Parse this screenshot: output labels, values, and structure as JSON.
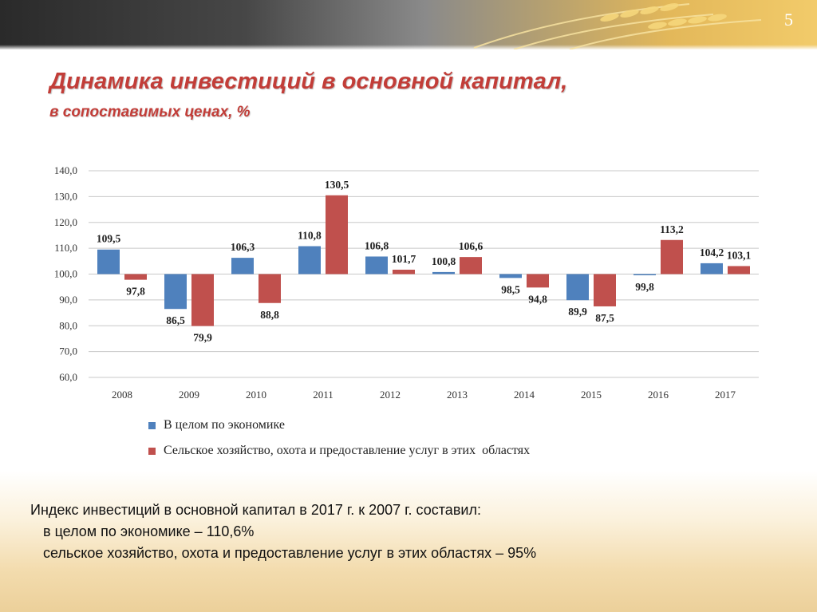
{
  "slide": {
    "number": "5",
    "title": "Динамика инвестиций в основной капитал,",
    "subtitle": "в сопоставимых ценах, %"
  },
  "colors": {
    "series1": "#4f81bd",
    "series2": "#c0504d",
    "title": "#c23d38"
  },
  "chart_data": {
    "type": "bar",
    "categories": [
      "2008",
      "2009",
      "2010",
      "2011",
      "2012",
      "2013",
      "2014",
      "2015",
      "2016",
      "2017"
    ],
    "y_ticks": [
      "60,0",
      "70,0",
      "80,0",
      "90,0",
      "100,0",
      "110,0",
      "120,0",
      "130,0",
      "140,0"
    ],
    "ylim": [
      60,
      140
    ],
    "baseline": 100,
    "grid": true,
    "legend_position": "bottom",
    "series": [
      {
        "name": "В целом по экономике",
        "values": [
          109.5,
          86.5,
          106.3,
          110.8,
          106.8,
          100.8,
          98.5,
          89.9,
          99.8,
          104.2
        ],
        "labels": [
          "109,5",
          "86,5",
          "106,3",
          "110,8",
          "106,8",
          "100,8",
          "98,5",
          "89,9",
          "99,8",
          "104,2"
        ]
      },
      {
        "name": "Сельское хозяйство, охота и предоставление услуг в этих  областях",
        "values": [
          97.8,
          79.9,
          88.8,
          130.5,
          101.7,
          106.6,
          94.8,
          87.5,
          113.2,
          103.1
        ],
        "labels": [
          "97,8",
          "79,9",
          "88,8",
          "130,5",
          "101,7",
          "106,6",
          "94,8",
          "87,5",
          "113,2",
          "103,1"
        ]
      }
    ]
  },
  "summary": {
    "line1": "Индекс инвестиций в основной капитал в 2017 г. к 2007 г. составил:",
    "line2": "в целом по экономике – 110,6%",
    "line3": "сельское хозяйство, охота и предоставление услуг в этих областях – 95%"
  }
}
